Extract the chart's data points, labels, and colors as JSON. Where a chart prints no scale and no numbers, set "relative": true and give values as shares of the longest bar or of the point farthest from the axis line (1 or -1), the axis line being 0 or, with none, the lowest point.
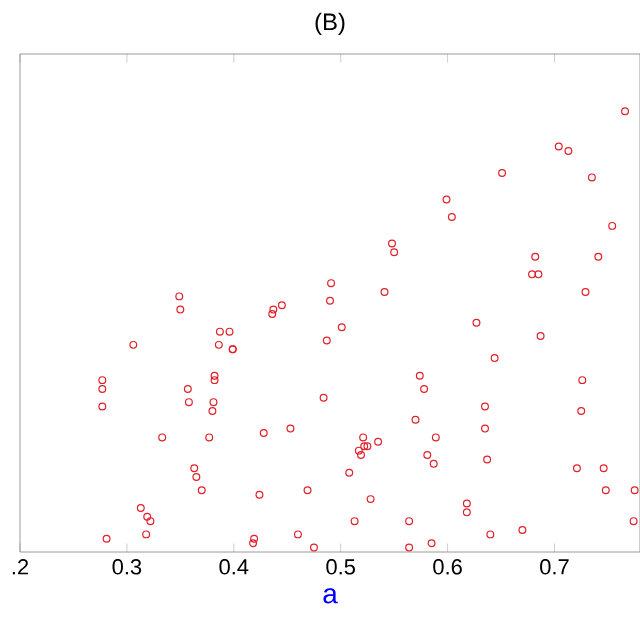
{
  "chart_data": {
    "type": "scatter",
    "title": "(B)",
    "xlabel": "a",
    "relative": true,
    "tick_labels": "x",
    "marker": "circle",
    "xlim": [
      0.2,
      0.78
    ],
    "xticks": [
      {
        "value": 0.2,
        "label": ".2"
      },
      0.3,
      0.4,
      0.5,
      0.6,
      0.7
    ],
    "series": [
      {
        "color": "#e0202a",
        "x": [
          0.349,
          0.35,
          0.437,
          0.436,
          0.445,
          0.49,
          0.491,
          0.387,
          0.396,
          0.386,
          0.306,
          0.399,
          0.399,
          0.487,
          0.277,
          0.277,
          0.277,
          0.357,
          0.358,
          0.382,
          0.382,
          0.381,
          0.38,
          0.484,
          0.333,
          0.377,
          0.428,
          0.453,
          0.363,
          0.365,
          0.37,
          0.424,
          0.469,
          0.313,
          0.319,
          0.322,
          0.318,
          0.281,
          0.419,
          0.418,
          0.46,
          0.475,
          0.541,
          0.501,
          0.729,
          0.627,
          0.687,
          0.644,
          0.574,
          0.578,
          0.726,
          0.725,
          0.57,
          0.635,
          0.635,
          0.521,
          0.522,
          0.517,
          0.519,
          0.525,
          0.535,
          0.589,
          0.581,
          0.587,
          0.637,
          0.508,
          0.528,
          0.721,
          0.746,
          0.748,
          0.775,
          0.774,
          0.618,
          0.618,
          0.513,
          0.564,
          0.64,
          0.67,
          0.585,
          0.564,
          0.766,
          0.704,
          0.713,
          0.651,
          0.735,
          0.599,
          0.604,
          0.548,
          0.55,
          0.754,
          0.682,
          0.679,
          0.685,
          0.741
        ],
        "values": [
          0.58,
          0.55,
          0.55,
          0.54,
          0.56,
          0.57,
          0.61,
          0.5,
          0.5,
          0.47,
          0.47,
          0.46,
          0.46,
          0.48,
          0.39,
          0.37,
          0.33,
          0.37,
          0.34,
          0.4,
          0.39,
          0.34,
          0.32,
          0.35,
          0.26,
          0.26,
          0.27,
          0.28,
          0.19,
          0.17,
          0.14,
          0.13,
          0.14,
          0.1,
          0.08,
          0.07,
          0.04,
          0.03,
          0.03,
          0.02,
          0.04,
          0.01,
          0.59,
          0.51,
          0.59,
          0.52,
          0.49,
          0.44,
          0.4,
          0.37,
          0.39,
          0.32,
          0.3,
          0.33,
          0.28,
          0.26,
          0.24,
          0.23,
          0.22,
          0.24,
          0.25,
          0.26,
          0.22,
          0.2,
          0.21,
          0.18,
          0.12,
          0.19,
          0.19,
          0.14,
          0.14,
          0.07,
          0.11,
          0.09,
          0.07,
          0.07,
          0.04,
          0.05,
          0.02,
          0.01,
          1.0,
          0.92,
          0.91,
          0.86,
          0.85,
          0.8,
          0.76,
          0.7,
          0.68,
          0.74,
          0.67,
          0.63,
          0.63,
          0.67
        ]
      }
    ]
  }
}
